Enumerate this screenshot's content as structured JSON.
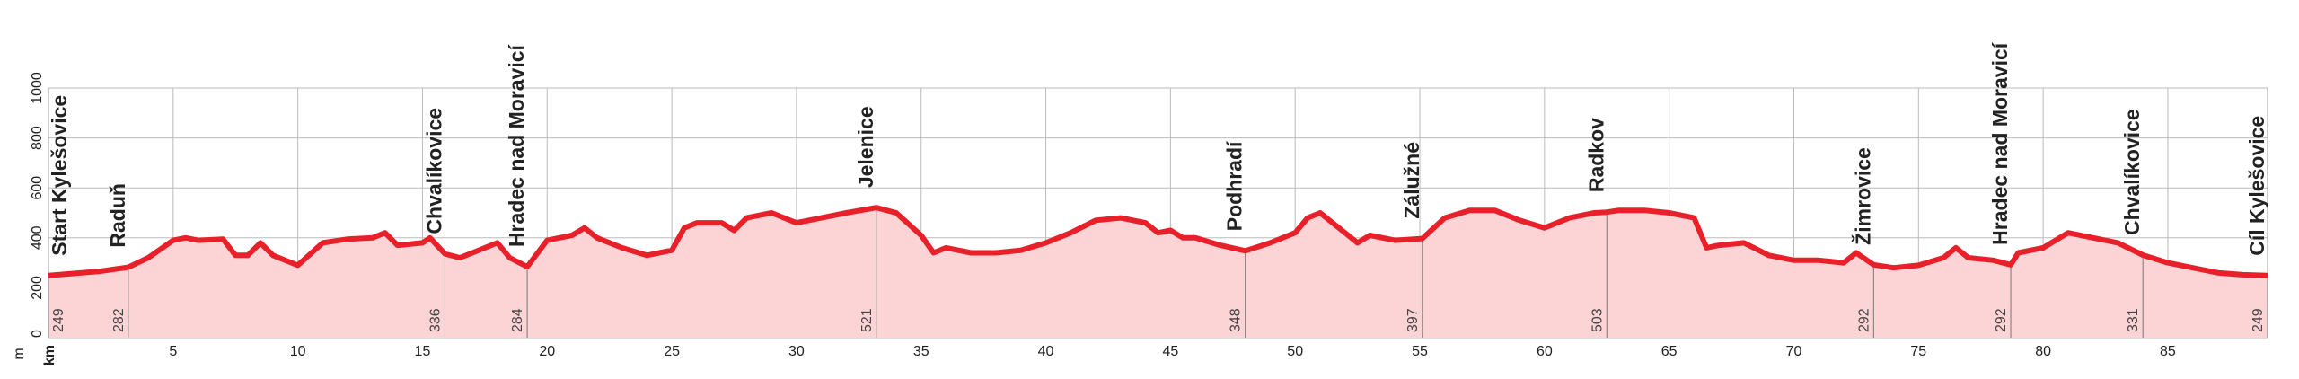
{
  "chart_data": {
    "type": "area",
    "color": "#e8202a",
    "fill": "#fcd4d6",
    "xlabel": "km",
    "ylabel": "m",
    "xlim": [
      0,
      89
    ],
    "ylim": [
      0,
      1000
    ],
    "xticks": [
      5,
      10,
      15,
      20,
      25,
      30,
      35,
      40,
      45,
      50,
      55,
      60,
      65,
      70,
      75,
      80,
      85
    ],
    "yticks": [
      0,
      200,
      400,
      600,
      800,
      1000
    ],
    "grid": true,
    "x": [
      0,
      2,
      3.2,
      4,
      5,
      5.5,
      6,
      7,
      7.5,
      8,
      8.5,
      9,
      10,
      11,
      12,
      13,
      13.5,
      14,
      15,
      15.3,
      15.9,
      16.5,
      17,
      18,
      18.5,
      19.2,
      20,
      21,
      21.5,
      22,
      23,
      24,
      25,
      25.5,
      26,
      27,
      27.5,
      28,
      29,
      30,
      31,
      32,
      33.2,
      34,
      35,
      35.5,
      36,
      37,
      38,
      39,
      40,
      41,
      42,
      43,
      44,
      44.5,
      45,
      45.5,
      46,
      47,
      48,
      49,
      50,
      50.5,
      51,
      52,
      52.5,
      53,
      54,
      55.1,
      56,
      57,
      58,
      59,
      60,
      61,
      62,
      62.5,
      63,
      64,
      65,
      66,
      66.5,
      67,
      68,
      69,
      70,
      71,
      72,
      72.5,
      73.2,
      74,
      75,
      76,
      76.5,
      77,
      78,
      78.7,
      79,
      80,
      81,
      82,
      83,
      84,
      85,
      86,
      87,
      88,
      89
    ],
    "values": [
      249,
      265,
      282,
      320,
      390,
      400,
      390,
      395,
      330,
      330,
      380,
      330,
      290,
      380,
      395,
      400,
      420,
      370,
      380,
      400,
      336,
      320,
      340,
      380,
      320,
      284,
      390,
      410,
      440,
      400,
      360,
      330,
      350,
      440,
      460,
      460,
      430,
      480,
      500,
      460,
      480,
      500,
      521,
      500,
      410,
      340,
      360,
      340,
      340,
      350,
      380,
      420,
      470,
      480,
      460,
      420,
      430,
      400,
      400,
      370,
      348,
      380,
      420,
      480,
      500,
      420,
      380,
      410,
      390,
      397,
      480,
      510,
      510,
      470,
      440,
      480,
      500,
      503,
      510,
      510,
      500,
      480,
      360,
      370,
      380,
      330,
      310,
      310,
      300,
      340,
      292,
      280,
      290,
      320,
      360,
      320,
      310,
      292,
      340,
      360,
      420,
      400,
      380,
      331,
      300,
      280,
      260,
      252,
      249
    ],
    "waypoints": [
      {
        "label": "Start Kylešovice",
        "km": 0,
        "elevation": 249
      },
      {
        "label": "Raduň",
        "km": 3.2,
        "elevation": 282
      },
      {
        "label": "Chvalíkovice",
        "km": 15.9,
        "elevation": 336
      },
      {
        "label": "Hradec nad Moravicí",
        "km": 19.2,
        "elevation": 284
      },
      {
        "label": "Jelenice",
        "km": 33.2,
        "elevation": 521
      },
      {
        "label": "Podhradí",
        "km": 48,
        "elevation": 348
      },
      {
        "label": "Zálužné",
        "km": 55.1,
        "elevation": 397
      },
      {
        "label": "Radkov",
        "km": 62.5,
        "elevation": 503
      },
      {
        "label": "Žimrovice",
        "km": 73.2,
        "elevation": 292
      },
      {
        "label": "Hradec nad Moravicí",
        "km": 78.7,
        "elevation": 292
      },
      {
        "label": "Chvalíkovice",
        "km": 84,
        "elevation": 331
      },
      {
        "label": "Cíl Kylešovice",
        "km": 89,
        "elevation": 249
      }
    ]
  }
}
